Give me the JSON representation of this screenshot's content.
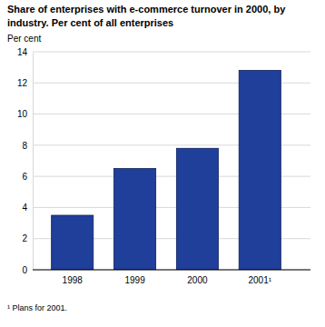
{
  "chart_data": {
    "type": "bar",
    "title": "Share of enterprises with e-commerce turnover in 2000, by industry. Per cent of all enterprises",
    "y_label": "Per cent",
    "categories": [
      "1998",
      "1999",
      "2000",
      "2001¹"
    ],
    "values": [
      3.5,
      6.5,
      7.8,
      12.8
    ],
    "color": "#1f3f9a",
    "ylim": [
      0,
      14
    ],
    "yticks": [
      0,
      2,
      4,
      6,
      8,
      10,
      12,
      14
    ],
    "grid": true,
    "footnote": "¹ Plans for 2001."
  }
}
